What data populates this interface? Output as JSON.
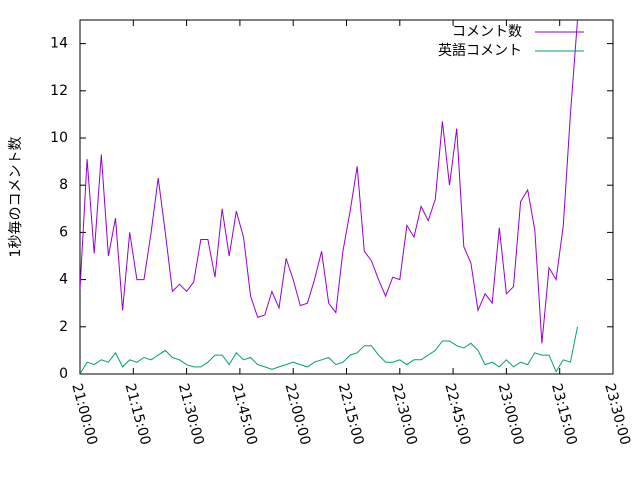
{
  "chart_data": {
    "type": "line",
    "ylabel": "1秒毎のコメント数",
    "x": [
      "21:00:00",
      "21:02:00",
      "21:04:00",
      "21:06:00",
      "21:08:00",
      "21:10:00",
      "21:12:00",
      "21:14:00",
      "21:16:00",
      "21:18:00",
      "21:20:00",
      "21:22:00",
      "21:24:00",
      "21:26:00",
      "21:28:00",
      "21:30:00",
      "21:32:00",
      "21:34:00",
      "21:36:00",
      "21:38:00",
      "21:40:00",
      "21:42:00",
      "21:44:00",
      "21:46:00",
      "21:48:00",
      "21:50:00",
      "21:52:00",
      "21:54:00",
      "21:56:00",
      "21:58:00",
      "22:00:00",
      "22:02:00",
      "22:04:00",
      "22:06:00",
      "22:08:00",
      "22:10:00",
      "22:12:00",
      "22:14:00",
      "22:16:00",
      "22:18:00",
      "22:20:00",
      "22:22:00",
      "22:24:00",
      "22:26:00",
      "22:28:00",
      "22:30:00",
      "22:32:00",
      "22:34:00",
      "22:36:00",
      "22:38:00",
      "22:40:00",
      "22:42:00",
      "22:44:00",
      "22:46:00",
      "22:48:00",
      "22:50:00",
      "22:52:00",
      "22:54:00",
      "22:56:00",
      "22:58:00",
      "23:00:00",
      "23:02:00",
      "23:04:00",
      "23:06:00",
      "23:08:00",
      "23:10:00",
      "23:12:00",
      "23:14:00",
      "23:16:00",
      "23:18:00",
      "23:20:00"
    ],
    "series": [
      {
        "name": "コメント数",
        "color": "#9400d3",
        "values": [
          3.6,
          9.1,
          5.1,
          9.3,
          5.0,
          6.6,
          2.7,
          6.0,
          4.0,
          4.0,
          6.0,
          8.3,
          6.0,
          3.5,
          3.8,
          3.5,
          3.9,
          5.7,
          5.7,
          4.1,
          7.0,
          5.0,
          6.9,
          5.8,
          3.3,
          2.4,
          2.5,
          3.5,
          2.8,
          4.9,
          4.0,
          2.9,
          3.0,
          4.0,
          5.2,
          3.0,
          2.6,
          5.2,
          6.9,
          8.8,
          5.2,
          4.8,
          4.0,
          3.3,
          4.1,
          4.0,
          6.3,
          5.8,
          7.1,
          6.5,
          7.4,
          10.7,
          8.0,
          10.4,
          5.4,
          4.7,
          2.7,
          3.4,
          3.0,
          6.2,
          3.4,
          3.7,
          7.3,
          7.8,
          6.1,
          1.3,
          4.5,
          4.0,
          6.3,
          11.0,
          15.0
        ]
      },
      {
        "name": "英語コメント",
        "color": "#009e73",
        "values": [
          0.0,
          0.5,
          0.4,
          0.6,
          0.5,
          0.9,
          0.3,
          0.6,
          0.5,
          0.7,
          0.6,
          0.8,
          1.0,
          0.7,
          0.6,
          0.4,
          0.3,
          0.3,
          0.5,
          0.8,
          0.8,
          0.4,
          0.9,
          0.6,
          0.7,
          0.4,
          0.3,
          0.2,
          0.3,
          0.4,
          0.5,
          0.4,
          0.3,
          0.5,
          0.6,
          0.7,
          0.4,
          0.5,
          0.8,
          0.9,
          1.2,
          1.2,
          0.8,
          0.5,
          0.5,
          0.6,
          0.4,
          0.6,
          0.6,
          0.8,
          1.0,
          1.4,
          1.4,
          1.2,
          1.1,
          1.3,
          1.0,
          0.4,
          0.5,
          0.3,
          0.6,
          0.3,
          0.5,
          0.4,
          0.9,
          0.8,
          0.8,
          0.1,
          0.6,
          0.5,
          2.0
        ]
      }
    ],
    "xlim": [
      "21:00:00",
      "23:30:00"
    ],
    "xticks": [
      "21:00:00",
      "21:15:00",
      "21:30:00",
      "21:45:00",
      "22:00:00",
      "22:15:00",
      "22:30:00",
      "22:45:00",
      "23:00:00",
      "23:15:00",
      "23:30:00"
    ],
    "ylim": [
      0,
      15
    ],
    "yticks": [
      0,
      2,
      4,
      6,
      8,
      10,
      12,
      14
    ],
    "legend": "top-right"
  }
}
